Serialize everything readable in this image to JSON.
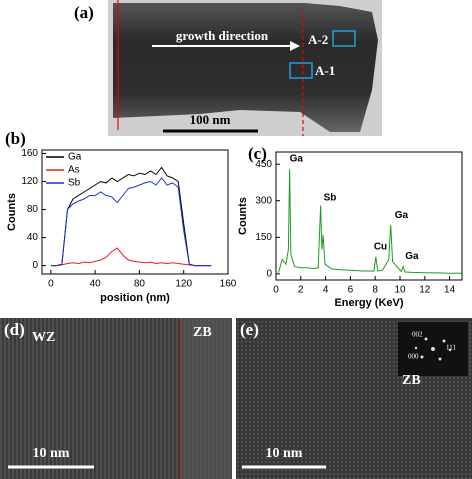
{
  "panels": {
    "a": {
      "label": "(a)",
      "arrow": "growth direction",
      "box1": "A-2",
      "box2": "A-1",
      "scale": "100 nm"
    },
    "d": {
      "label": "(d)",
      "left": "WZ",
      "right": "ZB",
      "scale": "10 nm"
    },
    "e": {
      "label": "(e)",
      "phase": "ZB",
      "fft": [
        "002",
        "111",
        "000"
      ],
      "scale": "10 nm"
    }
  },
  "chart_data": [
    {
      "type": "line",
      "label": "(b)",
      "xlabel": "position (nm)",
      "ylabel": "Counts",
      "x": [
        0,
        5,
        10,
        15,
        20,
        25,
        30,
        35,
        40,
        45,
        50,
        55,
        60,
        65,
        70,
        75,
        80,
        85,
        90,
        95,
        100,
        105,
        110,
        115,
        120,
        125,
        130,
        135,
        140,
        145
      ],
      "series": [
        {
          "name": "Ga",
          "color": "#000000",
          "values": [
            0,
            0,
            2,
            80,
            95,
            100,
            105,
            110,
            115,
            120,
            118,
            125,
            120,
            125,
            130,
            128,
            132,
            130,
            135,
            130,
            140,
            128,
            125,
            120,
            60,
            2,
            0,
            0,
            0,
            0
          ]
        },
        {
          "name": "As",
          "color": "#e8201c",
          "values": [
            0,
            0,
            1,
            3,
            4,
            3,
            5,
            4,
            6,
            8,
            12,
            20,
            25,
            15,
            8,
            6,
            5,
            4,
            5,
            3,
            4,
            3,
            4,
            3,
            2,
            1,
            0,
            0,
            0,
            0
          ]
        },
        {
          "name": "Sb",
          "color": "#1a2fd6",
          "values": [
            0,
            0,
            2,
            80,
            88,
            92,
            95,
            100,
            100,
            105,
            100,
            98,
            90,
            100,
            110,
            112,
            115,
            118,
            120,
            115,
            125,
            115,
            118,
            112,
            50,
            2,
            0,
            0,
            0,
            0
          ]
        }
      ],
      "xlim": [
        -8,
        160
      ],
      "xticks": [
        0,
        40,
        80,
        120,
        160
      ],
      "ylim": [
        -12,
        165
      ],
      "yticks": [
        0,
        40,
        80,
        120,
        160
      ],
      "legend": "upper left"
    },
    {
      "type": "line",
      "label": "(c)",
      "xlabel": "Energy (KeV)",
      "ylabel": "Counts",
      "x": [
        0.2,
        0.5,
        0.8,
        1.0,
        1.1,
        1.2,
        1.5,
        2,
        2.5,
        3,
        3.4,
        3.6,
        3.7,
        3.8,
        3.95,
        4.5,
        5,
        6,
        7,
        7.9,
        8.05,
        8.2,
        8.6,
        9.1,
        9.25,
        9.4,
        10.1,
        10.26,
        10.4,
        11,
        12,
        13,
        14,
        15
      ],
      "series": [
        {
          "name": "spectrum",
          "color": "#1f9a1f",
          "values": [
            5,
            60,
            40,
            100,
            430,
            80,
            30,
            25,
            25,
            22,
            25,
            280,
            100,
            160,
            40,
            20,
            18,
            15,
            12,
            12,
            70,
            12,
            15,
            60,
            200,
            50,
            10,
            30,
            8,
            6,
            5,
            4,
            3,
            3
          ]
        }
      ],
      "annotations": [
        "Ga",
        "Sb",
        "Cu",
        "Ga",
        "Ga"
      ],
      "xlim": [
        0,
        15
      ],
      "xticks": [
        0,
        2,
        4,
        6,
        8,
        10,
        12,
        14
      ],
      "ylim": [
        -25,
        500
      ],
      "yticks": [
        0,
        150,
        300,
        450
      ]
    }
  ]
}
